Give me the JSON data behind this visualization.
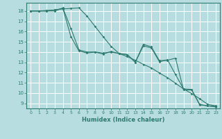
{
  "xlabel": "Humidex (Indice chaleur)",
  "xlim": [
    -0.5,
    23.5
  ],
  "ylim": [
    8.5,
    18.8
  ],
  "yticks": [
    9,
    10,
    11,
    12,
    13,
    14,
    15,
    16,
    17,
    18
  ],
  "xticks": [
    0,
    1,
    2,
    3,
    4,
    5,
    6,
    7,
    8,
    9,
    10,
    11,
    12,
    13,
    14,
    15,
    16,
    17,
    18,
    19,
    20,
    21,
    22,
    23
  ],
  "bg_color": "#b8dde0",
  "grid_color": "#ffffff",
  "line_color": "#2d7a6e",
  "line1_x": [
    0,
    1,
    2,
    3,
    4,
    5,
    6,
    7,
    8,
    9,
    10,
    11,
    12,
    13,
    14,
    15,
    16,
    17,
    18,
    19,
    20,
    21,
    22,
    23
  ],
  "line1_y": [
    18,
    18,
    18,
    18.1,
    18.25,
    15.5,
    14.1,
    13.9,
    14.0,
    13.8,
    14.05,
    13.85,
    13.75,
    13.0,
    14.75,
    14.5,
    13.15,
    13.2,
    13.4,
    10.3,
    10.3,
    8.85,
    8.75,
    8.7
  ],
  "line2_x": [
    0,
    1,
    2,
    3,
    4,
    5,
    6,
    7,
    8,
    9,
    10,
    11,
    12,
    13,
    14,
    15,
    16,
    17,
    18,
    19,
    20,
    21,
    22,
    23
  ],
  "line2_y": [
    18,
    18,
    18,
    18,
    18.3,
    16.3,
    14.2,
    14.0,
    14.0,
    13.9,
    14.0,
    13.85,
    13.75,
    13.0,
    14.6,
    14.4,
    13.05,
    13.25,
    11.8,
    10.4,
    10.35,
    8.9,
    8.75,
    8.65
  ],
  "line3_x": [
    0,
    1,
    2,
    3,
    4,
    5,
    6,
    7,
    8,
    9,
    10,
    11,
    12,
    13,
    14,
    15,
    16,
    17,
    18,
    19,
    20,
    21,
    22,
    23
  ],
  "line3_y": [
    18,
    18,
    18.05,
    18.1,
    18.2,
    18.25,
    18.3,
    17.5,
    16.5,
    15.5,
    14.55,
    13.85,
    13.55,
    13.2,
    12.8,
    12.45,
    11.95,
    11.5,
    10.95,
    10.4,
    9.95,
    9.45,
    8.9,
    8.75
  ]
}
